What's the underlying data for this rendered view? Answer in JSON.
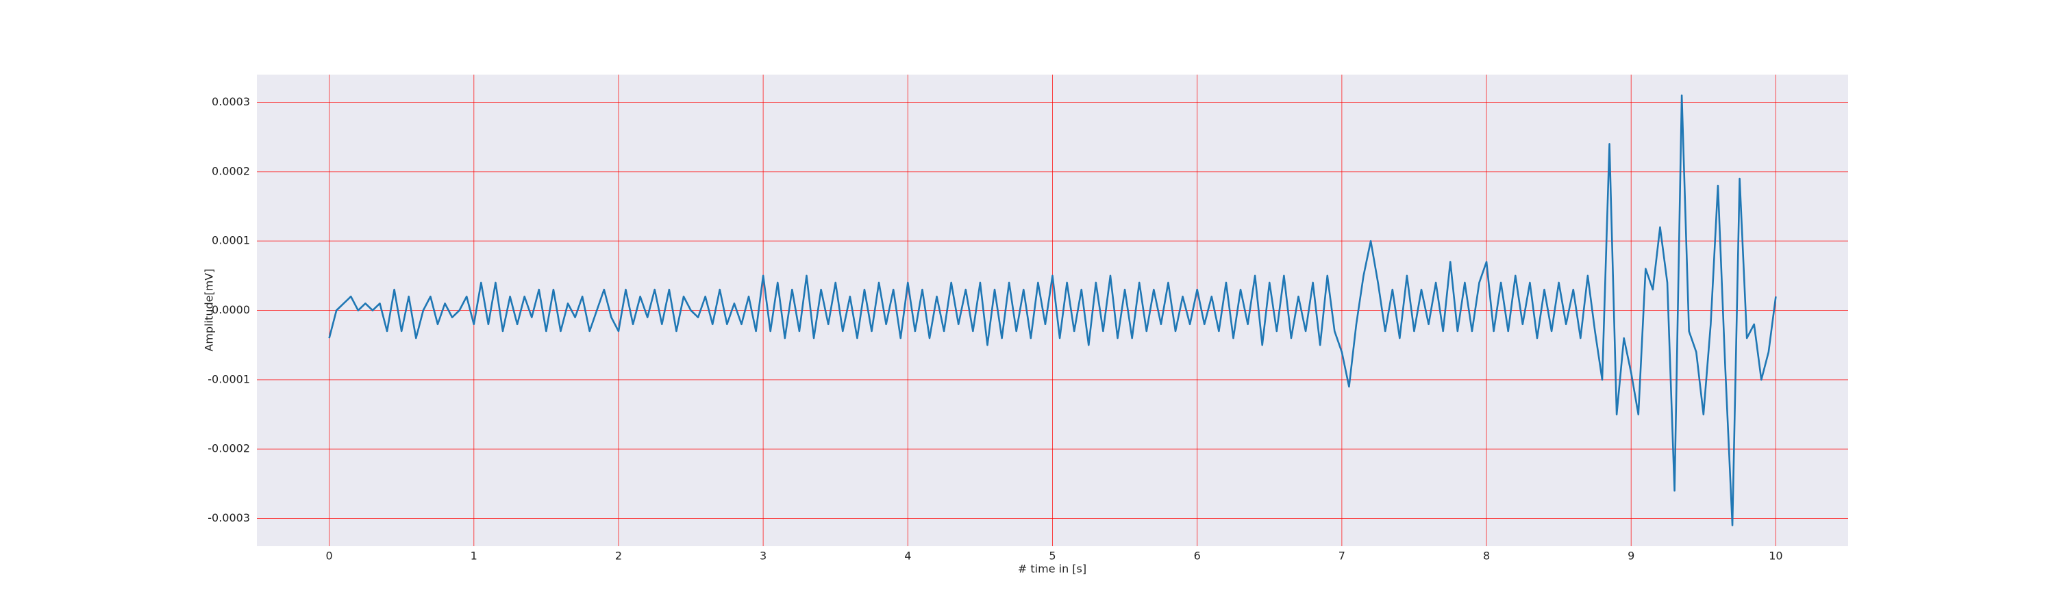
{
  "chart_data": {
    "type": "line",
    "xlabel": "# time in [s]",
    "ylabel": "Amplitude[mV]",
    "x": [
      0,
      0.05,
      0.1,
      0.15,
      0.2,
      0.25,
      0.3,
      0.35,
      0.4,
      0.45,
      0.5,
      0.55,
      0.6,
      0.65,
      0.7,
      0.75,
      0.8,
      0.85,
      0.9,
      0.95,
      1,
      1.05,
      1.1,
      1.15,
      1.2,
      1.25,
      1.3,
      1.35,
      1.4,
      1.45,
      1.5,
      1.55,
      1.6,
      1.65,
      1.7,
      1.75,
      1.8,
      1.85,
      1.9,
      1.95,
      2,
      2.05,
      2.1,
      2.15,
      2.2,
      2.25,
      2.3,
      2.35,
      2.4,
      2.45,
      2.5,
      2.55,
      2.6,
      2.65,
      2.7,
      2.75,
      2.8,
      2.85,
      2.9,
      2.95,
      3,
      3.05,
      3.1,
      3.15,
      3.2,
      3.25,
      3.3,
      3.35,
      3.4,
      3.45,
      3.5,
      3.55,
      3.6,
      3.65,
      3.7,
      3.75,
      3.8,
      3.85,
      3.9,
      3.95,
      4,
      4.05,
      4.1,
      4.15,
      4.2,
      4.25,
      4.3,
      4.35,
      4.4,
      4.45,
      4.5,
      4.55,
      4.6,
      4.65,
      4.7,
      4.75,
      4.8,
      4.85,
      4.9,
      4.95,
      5,
      5.05,
      5.1,
      5.15,
      5.2,
      5.25,
      5.3,
      5.35,
      5.4,
      5.45,
      5.5,
      5.55,
      5.6,
      5.65,
      5.7,
      5.75,
      5.8,
      5.85,
      5.9,
      5.95,
      6,
      6.05,
      6.1,
      6.15,
      6.2,
      6.25,
      6.3,
      6.35,
      6.4,
      6.45,
      6.5,
      6.55,
      6.6,
      6.65,
      6.7,
      6.75,
      6.8,
      6.85,
      6.9,
      6.95,
      7,
      7.05,
      7.1,
      7.15,
      7.2,
      7.25,
      7.3,
      7.35,
      7.4,
      7.45,
      7.5,
      7.55,
      7.6,
      7.65,
      7.7,
      7.75,
      7.8,
      7.85,
      7.9,
      7.95,
      8,
      8.05,
      8.1,
      8.15,
      8.2,
      8.25,
      8.3,
      8.35,
      8.4,
      8.45,
      8.5,
      8.55,
      8.6,
      8.65,
      8.7,
      8.75,
      8.8,
      8.85,
      8.9,
      8.95,
      9,
      9.05,
      9.1,
      9.15,
      9.2,
      9.25,
      9.3,
      9.35,
      9.4,
      9.45,
      9.5,
      9.55,
      9.6,
      9.65,
      9.7,
      9.75,
      9.8,
      9.85,
      9.9,
      9.95,
      10
    ],
    "series": [
      {
        "color": "#1f77b4",
        "values": [
          -4e-05,
          0,
          1e-05,
          2e-05,
          0,
          1e-05,
          0,
          1e-05,
          -3e-05,
          3e-05,
          -3e-05,
          2e-05,
          -4e-05,
          0,
          2e-05,
          -2e-05,
          1e-05,
          -1e-05,
          0,
          2e-05,
          -2e-05,
          4e-05,
          -2e-05,
          4e-05,
          -3e-05,
          2e-05,
          -2e-05,
          2e-05,
          -1e-05,
          3e-05,
          -3e-05,
          3e-05,
          -3e-05,
          1e-05,
          -1e-05,
          2e-05,
          -3e-05,
          0,
          3e-05,
          -1e-05,
          -3e-05,
          3e-05,
          -2e-05,
          2e-05,
          -1e-05,
          3e-05,
          -2e-05,
          3e-05,
          -3e-05,
          2e-05,
          0,
          -1e-05,
          2e-05,
          -2e-05,
          3e-05,
          -2e-05,
          1e-05,
          -2e-05,
          2e-05,
          -3e-05,
          5e-05,
          -3e-05,
          4e-05,
          -4e-05,
          3e-05,
          -3e-05,
          5e-05,
          -4e-05,
          3e-05,
          -2e-05,
          4e-05,
          -3e-05,
          2e-05,
          -4e-05,
          3e-05,
          -3e-05,
          4e-05,
          -2e-05,
          3e-05,
          -4e-05,
          4e-05,
          -3e-05,
          3e-05,
          -4e-05,
          2e-05,
          -3e-05,
          4e-05,
          -2e-05,
          3e-05,
          -3e-05,
          4e-05,
          -5e-05,
          3e-05,
          -4e-05,
          4e-05,
          -3e-05,
          3e-05,
          -4e-05,
          4e-05,
          -2e-05,
          5e-05,
          -4e-05,
          4e-05,
          -3e-05,
          3e-05,
          -5e-05,
          4e-05,
          -3e-05,
          5e-05,
          -4e-05,
          3e-05,
          -4e-05,
          4e-05,
          -3e-05,
          3e-05,
          -2e-05,
          4e-05,
          -3e-05,
          2e-05,
          -2e-05,
          3e-05,
          -2e-05,
          2e-05,
          -3e-05,
          4e-05,
          -4e-05,
          3e-05,
          -2e-05,
          5e-05,
          -5e-05,
          4e-05,
          -3e-05,
          5e-05,
          -4e-05,
          2e-05,
          -3e-05,
          4e-05,
          -5e-05,
          5e-05,
          -3e-05,
          -6e-05,
          -0.00011,
          -2e-05,
          5e-05,
          0.0001,
          4e-05,
          -3e-05,
          3e-05,
          -4e-05,
          5e-05,
          -3e-05,
          3e-05,
          -2e-05,
          4e-05,
          -3e-05,
          7e-05,
          -3e-05,
          4e-05,
          -3e-05,
          4e-05,
          7e-05,
          -3e-05,
          4e-05,
          -3e-05,
          5e-05,
          -2e-05,
          4e-05,
          -4e-05,
          3e-05,
          -3e-05,
          4e-05,
          -2e-05,
          3e-05,
          -4e-05,
          5e-05,
          -3e-05,
          -0.0001,
          0.00024,
          -0.00015,
          -4e-05,
          -9e-05,
          -0.00015,
          6e-05,
          3e-05,
          0.00012,
          4e-05,
          -0.00026,
          0.00031,
          -3e-05,
          -6e-05,
          -0.00015,
          -2e-05,
          0.00018,
          -8e-05,
          -0.00031,
          0.00019,
          -4e-05,
          -2e-05,
          -0.0001,
          -6e-05,
          2e-05
        ]
      }
    ],
    "xlim": [
      -0.5,
      10.5
    ],
    "xticks": [
      0,
      1,
      2,
      3,
      4,
      5,
      6,
      7,
      8,
      9,
      10
    ],
    "ylim": [
      -0.00034,
      0.00034
    ],
    "yticks": [
      -0.0003,
      -0.0002,
      -0.0001,
      {
        "value": 0,
        "label": "0.0000"
      },
      0.0001,
      0.0002,
      0.0003
    ],
    "grid": true,
    "grid_color": "#ff0000"
  }
}
